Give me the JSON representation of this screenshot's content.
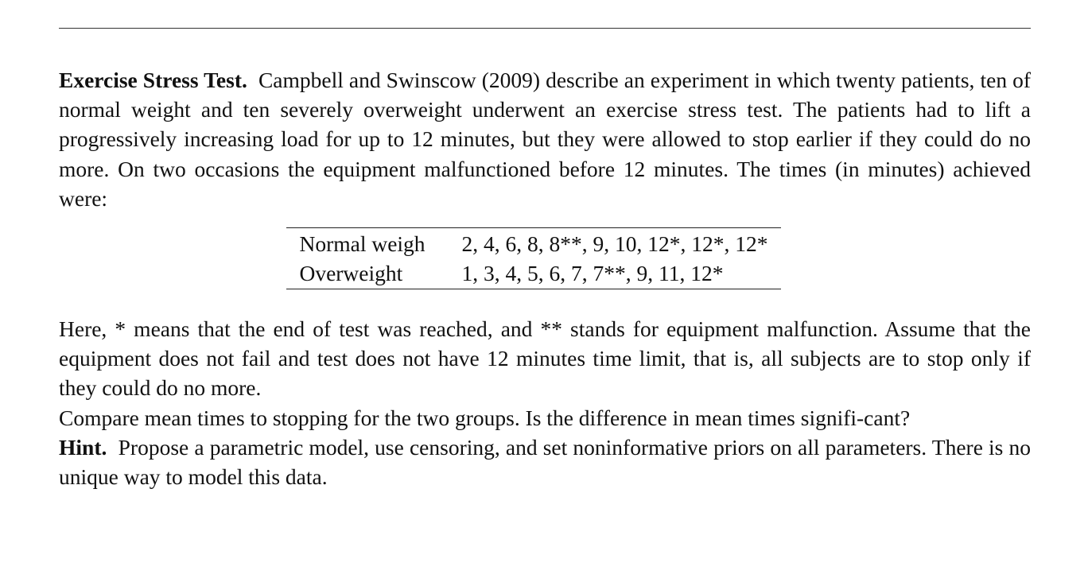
{
  "intro": {
    "heading": "Exercise Stress Test.",
    "text": "Campbell and Swinscow (2009) describe an experiment in which twenty patients, ten of normal weight and ten severely overweight underwent an exercise stress test. The patients had to lift a progressively increasing load for up to 12 minutes, but they were allowed to stop earlier if they could do no more. On two occasions the equipment malfunctioned before 12 minutes. The times (in minutes) achieved were:"
  },
  "table": {
    "rows": [
      {
        "label": "Normal weigh",
        "values": "2, 4, 6, 8, 8**, 9, 10, 12*, 12*, 12*"
      },
      {
        "label": "Overweight",
        "values": "1, 3, 4, 5, 6, 7, 7**, 9, 11, 12*"
      }
    ]
  },
  "notes": {
    "legend": "Here, * means that the end of test was reached, and ** stands for equipment malfunction. Assume that the equipment does not fail and test does not have 12 minutes time limit, that is, all subjects are to stop only if they could do no more.",
    "question": "Compare mean times to stopping for the two groups. Is the difference in mean times signifi-cant?",
    "hint_heading": "Hint.",
    "hint_text": "Propose a parametric model, use censoring, and set noninformative priors on all parameters. There is no unique way to model this data."
  }
}
